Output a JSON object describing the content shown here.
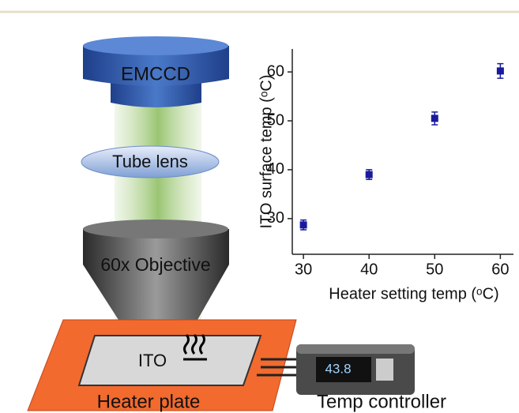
{
  "chart_data": {
    "type": "scatter",
    "x_label": "Heater setting temp (ᵒC)",
    "y_label": "ITO surface temp (ᵒC)",
    "series": [
      {
        "x": [
          30,
          40,
          50,
          60
        ],
        "values": [
          28.7,
          39,
          50.5,
          60.2
        ],
        "errors": [
          1,
          1,
          1.3,
          1.5
        ],
        "color": "#1a1a9c"
      }
    ],
    "xlim": [
      28.3,
      62
    ],
    "ylim": [
      22.7,
      64.7
    ],
    "xticks": [
      30,
      40,
      50,
      60
    ],
    "yticks": [
      30,
      40,
      50,
      60
    ]
  },
  "diagram": {
    "labels": [
      "EMCCD",
      "Tube lens",
      "60x Objective",
      "ITO",
      "Heater plate",
      "Temp controller",
      "43.8"
    ]
  }
}
